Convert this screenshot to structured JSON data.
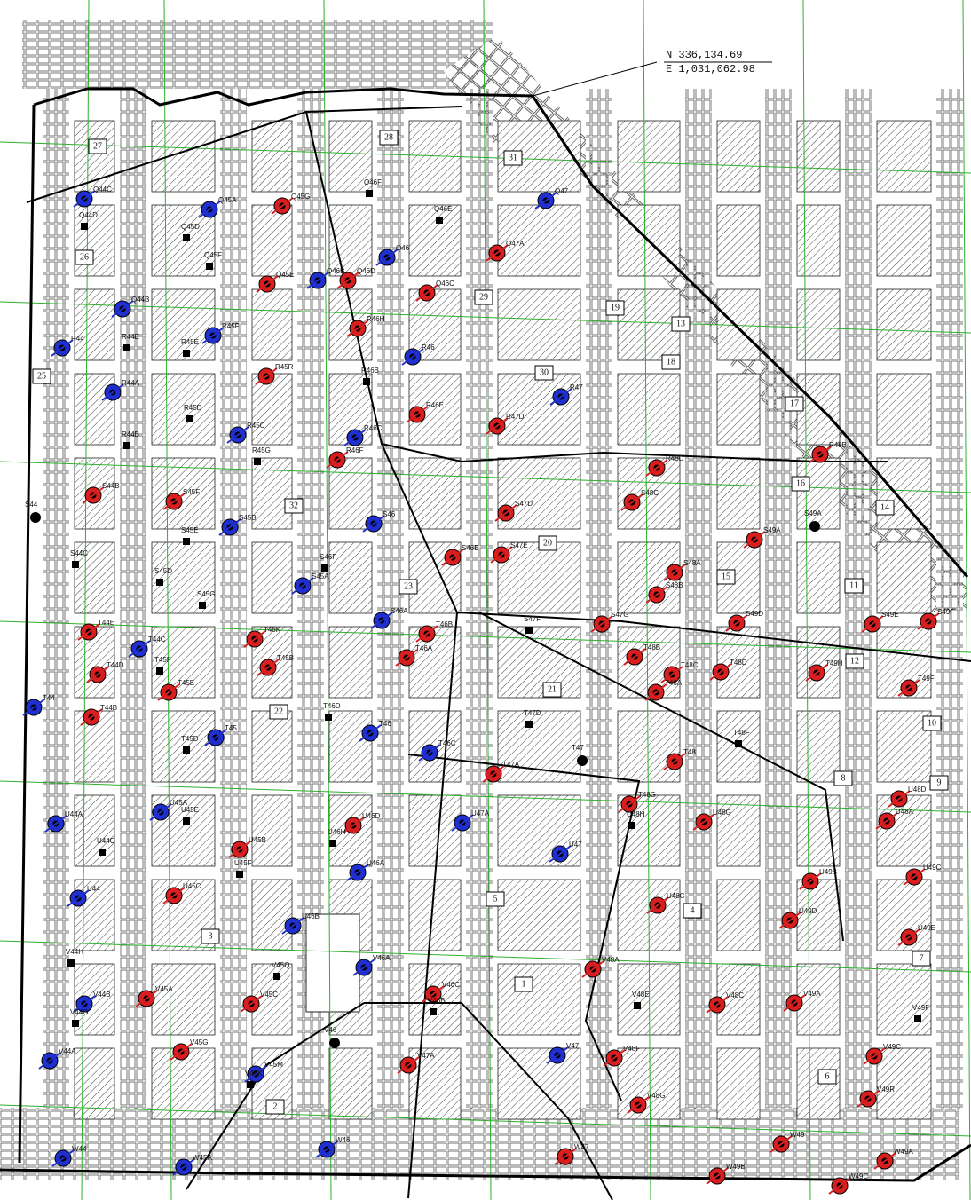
{
  "coordinates": {
    "northing": "N 336,134.69",
    "easting": "E 1,031,062.98"
  },
  "panels": [
    "27",
    "28",
    "31",
    "26",
    "29",
    "19",
    "13",
    "18",
    "25",
    "30",
    "17",
    "16",
    "14",
    "15",
    "11",
    "32",
    "20",
    "23",
    "22",
    "21",
    "12",
    "10",
    "8",
    "9",
    "5",
    "3",
    "4",
    "7",
    "6",
    "2",
    "1"
  ],
  "red_wells": {
    "color": "#d81e1e",
    "labels": [
      "Q45G",
      "Q46D",
      "Q45E",
      "R46H",
      "R45R",
      "R46E",
      "R46F",
      "Q47A",
      "Q46C",
      "R47D",
      "S44B",
      "S45F",
      "S47D",
      "S47E",
      "S46E",
      "S48C",
      "S49A",
      "S48A",
      "S48B",
      "S47G",
      "S49D",
      "S49E",
      "S49F",
      "R49B",
      "R48D",
      "T44E",
      "T44D",
      "T44B",
      "T45E",
      "T45K",
      "T45B",
      "T46A",
      "T46B",
      "T48B",
      "T48C",
      "T48A",
      "T48D",
      "T49H",
      "T49F",
      "T48",
      "T47A",
      "T48G",
      "U48G",
      "U48A",
      "U48D",
      "U49B",
      "U49C",
      "U49D",
      "U49E",
      "U48C",
      "U46D",
      "U45C",
      "U45B",
      "V45A",
      "V45C",
      "V45G",
      "V46C",
      "V48A",
      "V49A",
      "V48C",
      "V48F",
      "V48G",
      "V49C",
      "V49R",
      "V47A",
      "W47",
      "W49",
      "W49A",
      "W49B",
      "W49C"
    ]
  },
  "blue_wells": {
    "color": "#1f2fd0",
    "labels": [
      "Q44C",
      "Q45A",
      "Q46",
      "Q46B",
      "Q47",
      "Q44B",
      "R44",
      "R45F",
      "R45C",
      "R46C",
      "R46",
      "R47",
      "R44A",
      "S45B",
      "S46",
      "S45A",
      "S46A",
      "T44C",
      "T44",
      "T45",
      "T46",
      "T46C",
      "U44A",
      "U45A",
      "U46A",
      "U47A",
      "U47",
      "U44",
      "U46B",
      "V46A",
      "V44B",
      "V44A",
      "V45M",
      "V47",
      "W44",
      "W45A",
      "W46"
    ]
  },
  "points": [
    "S44",
    "S49A",
    "T47",
    "V46"
  ],
  "squares": [
    "Q44D",
    "Q45D",
    "Q45F",
    "Q46F",
    "Q46E",
    "R44E",
    "R44B",
    "R45E",
    "R45D",
    "R45G",
    "R46B",
    "S44C",
    "S45E",
    "S45D",
    "S45G",
    "S46F",
    "S47F",
    "T45F",
    "T45D",
    "T46D",
    "T47D",
    "T48F",
    "U44C",
    "U45E",
    "U45F",
    "U46H",
    "U48H",
    "V44H",
    "V44G",
    "V45Q",
    "V45K",
    "V46B",
    "V48E",
    "V49F"
  ]
}
